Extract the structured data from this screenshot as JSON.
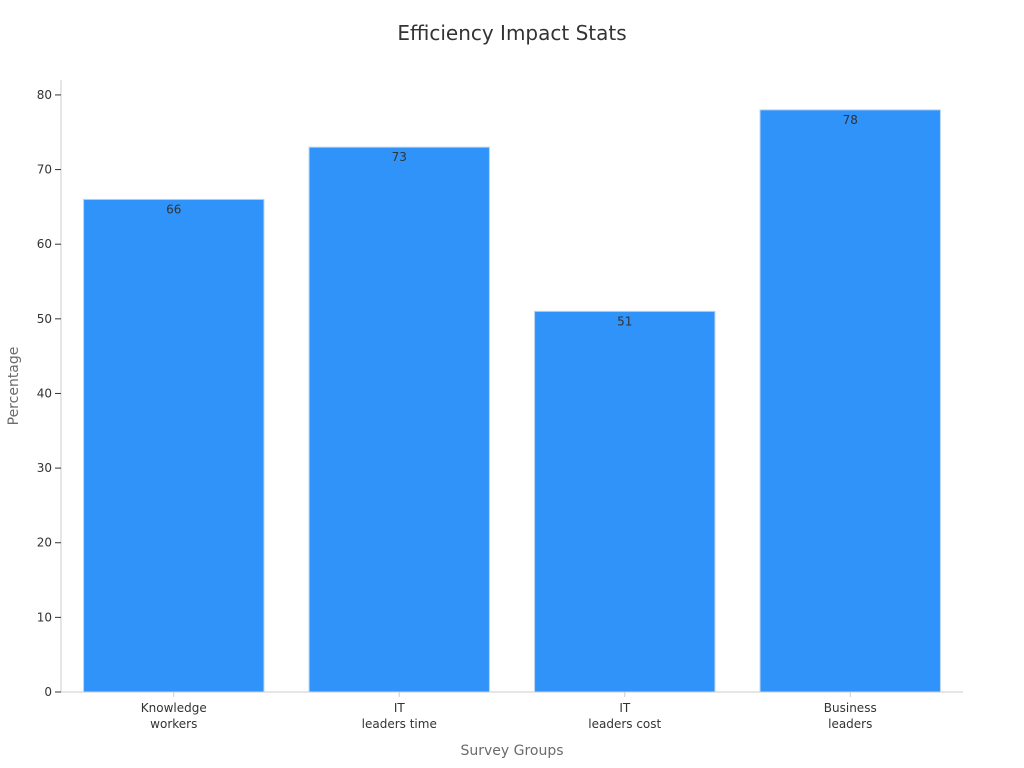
{
  "chart_data": {
    "type": "bar",
    "title": "Efficiency Impact Stats",
    "xlabel": "Survey Groups",
    "ylabel": "Percentage",
    "categories": [
      [
        "Knowledge",
        "workers"
      ],
      [
        "IT",
        "leaders time"
      ],
      [
        "IT",
        "leaders cost"
      ],
      [
        "Business",
        "leaders"
      ]
    ],
    "values": [
      66,
      73,
      51,
      78
    ],
    "ylim": [
      0,
      82
    ],
    "yticks": [
      0,
      10,
      20,
      30,
      40,
      50,
      60,
      70,
      80
    ],
    "grid": false,
    "legend": "none",
    "colors": {
      "bar": "#2f93fa",
      "bar_edge": "#b8d4f0",
      "axis": "#cccccc"
    }
  }
}
